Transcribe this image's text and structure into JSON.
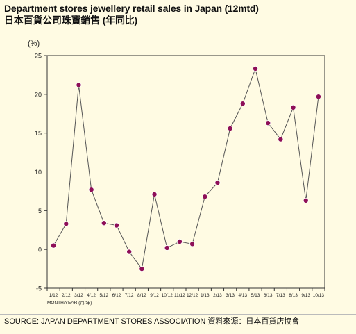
{
  "title_line1": "Department stores jewellery retail sales in Japan (12mtd)",
  "title_line2": "日本百貨公司珠寶銷售 (年同比)",
  "source": "SOURCE: JAPAN DEPARTMENT STORES ASSOCIATION    資料來源：日本百貨店協會",
  "colors": {
    "background": "#fffbe3",
    "marker": "#8e0f57",
    "line": "#555555"
  },
  "chart_data": {
    "type": "line",
    "title": "Department stores jewellery retail sales in Japan (12mtd)",
    "ylabel": "(%)",
    "xlabel": "MONTH/YEAR (月/年)",
    "ylim": [
      -5,
      25
    ],
    "yticks": [
      -5,
      0,
      5,
      10,
      15,
      20,
      25
    ],
    "grid": false,
    "categories": [
      "1/12",
      "2/12",
      "3/12",
      "4/12",
      "5/12",
      "6/12",
      "7/12",
      "8/12",
      "9/12",
      "10/12",
      "11/12",
      "12/12",
      "1/13",
      "2/13",
      "3/13",
      "4/13",
      "5/13",
      "6/13",
      "7/13",
      "8/13",
      "9/13",
      "10/13"
    ],
    "values": [
      0.5,
      3.3,
      21.2,
      7.7,
      3.4,
      3.1,
      -0.3,
      -2.5,
      7.1,
      0.2,
      1.0,
      0.7,
      6.8,
      8.6,
      15.6,
      18.8,
      23.3,
      16.3,
      14.2,
      18.3,
      6.3,
      19.7
    ]
  }
}
